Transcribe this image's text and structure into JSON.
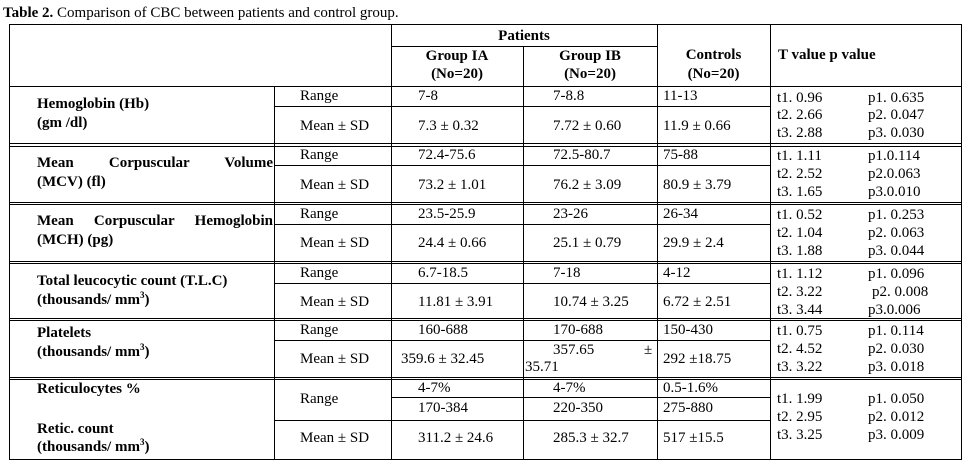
{
  "caption": {
    "label": "Table 2.",
    "text": " Comparison of CBC between patients and control group."
  },
  "header": {
    "patients": "Patients",
    "group_ia": "Group IA",
    "group_ia_n": "(No=20)",
    "group_ib": "Group IB",
    "group_ib_n": "(No=20)",
    "controls": "Controls",
    "controls_n": "(No=20)",
    "tp": "T value p value"
  },
  "rows": {
    "hb": {
      "name1": "Hemoglobin (Hb)",
      "name2": "(gm /dl)",
      "range": {
        "label": "Range",
        "ia": "7-8",
        "ib": "7-8.8",
        "ctrl": "11-13"
      },
      "mean": {
        "label": "Mean ± SD",
        "ia": "7.3 ± 0.32",
        "ib": "7.72 ± 0.60",
        "ctrl": "11.9 ± 0.66"
      },
      "t": [
        "t1. 0.96",
        "t2. 2.66",
        "t3. 2.88"
      ],
      "p": [
        "p1. 0.635",
        "p2. 0.047",
        "p3. 0.030"
      ]
    },
    "mcv": {
      "name1": "Mean Corpuscular Volume",
      "name2": "(MCV) (fl)",
      "range": {
        "label": "Range",
        "ia": "72.4-75.6",
        "ib": "72.5-80.7",
        "ctrl": "75-88"
      },
      "mean": {
        "label": "Mean ± SD",
        "ia": "73.2 ± 1.01",
        "ib": "76.2 ± 3.09",
        "ctrl": "80.9 ± 3.79"
      },
      "t": [
        "t1. 1.11",
        "t2. 2.52",
        "t3. 1.65"
      ],
      "p": [
        "p1.0.114",
        "p2.0.063",
        "p3.0.010"
      ]
    },
    "mch": {
      "name1": "Mean Corpuscular Hemoglobin",
      "name2": "(MCH) (pg)",
      "range": {
        "label": "Range",
        "ia": "23.5-25.9",
        "ib": "23-26",
        "ctrl": "26-34"
      },
      "mean": {
        "label": "Mean ± SD",
        "ia": "24.4 ± 0.66",
        "ib": "25.1 ± 0.79",
        "ctrl": "29.9 ± 2.4"
      },
      "t": [
        "t1. 0.52",
        "t2. 1.04",
        "t3. 1.88"
      ],
      "p": [
        "p1. 0.253",
        "p2. 0.063",
        "p3. 0.044"
      ]
    },
    "tlc": {
      "name1": "Total leucocytic count (T.L.C)",
      "name2": "(thousands/ mm",
      "name2_sup": "3",
      "name2_end": ")",
      "range": {
        "label": "Range",
        "ia": "6.7-18.5",
        "ib": "7-18",
        "ctrl": "4-12"
      },
      "mean": {
        "label": "Mean ± SD",
        "ia": "11.81 ± 3.91",
        "ib": "10.74 ± 3.25",
        "ctrl": "6.72 ± 2.51"
      },
      "t": [
        "t1. 1.12",
        "t2. 3.22",
        "t3. 3.44"
      ],
      "p": [
        "p1. 0.096",
        "p2. 0.008",
        "p3.0.006"
      ]
    },
    "plt": {
      "name1": "Platelets",
      "name2": "(thousands/ mm",
      "name2_sup": "3",
      "name2_end": ")",
      "range": {
        "label": "Range",
        "ia": "160-688",
        "ib": "170-688",
        "ctrl": "150-430"
      },
      "mean": {
        "label": "Mean ± SD",
        "ia": "359.6 ± 32.45",
        "ib_a": "357.65",
        "ib_b": "±",
        "ib_c": "35.71",
        "ctrl": "292 ±18.75"
      },
      "t": [
        "t1. 0.75",
        "t2. 4.52",
        "t3. 3.22"
      ],
      "p": [
        "p1. 0.114",
        "p2. 0.030",
        "p3. 0.018"
      ]
    },
    "retic": {
      "name1": "Reticulocytes %",
      "name2": "Retic. count",
      "name3": "(thousands/ mm",
      "name3_sup": "3",
      "name3_end": ")",
      "range": {
        "label": "Range",
        "ia1": "4-7%",
        "ib1": "4-7%",
        "ctrl1": "0.5-1.6%",
        "ia2": "170-384",
        "ib2": "220-350",
        "ctrl2": "275-880"
      },
      "mean": {
        "label": "Mean ± SD",
        "ia": "311.2 ± 24.6",
        "ib": "285.3 ± 32.7",
        "ctrl": "517 ±15.5"
      },
      "t": [
        "t1. 1.99",
        "t2. 2.95",
        "t3. 3.25"
      ],
      "p": [
        "p1. 0.050",
        "p2. 0.012",
        "p3. 0.009"
      ]
    }
  }
}
